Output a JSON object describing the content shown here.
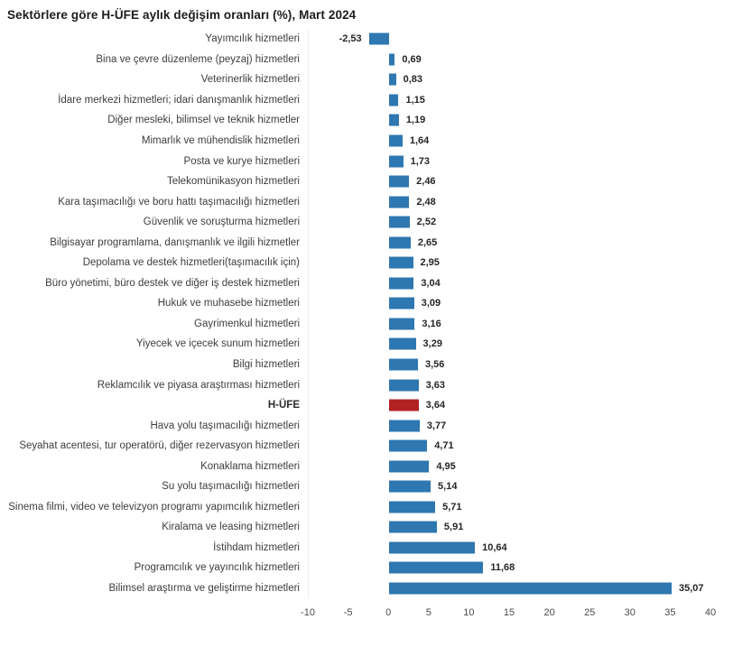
{
  "title": "Sektörlere göre H-ÜFE aylık değişim oranları (%), Mart 2024",
  "colors": {
    "bar": "#2e77b0",
    "highlight": "#b22222",
    "title_text": "#1c1c1c",
    "label_text": "#3d3d3d",
    "value_text": "#262626",
    "axis_text": "#4a4a4a"
  },
  "chart_data": {
    "type": "bar",
    "orientation": "horizontal",
    "title": "Sektörlere göre H-ÜFE aylık değişim oranları (%), Mart 2024",
    "xlabel": "",
    "ylabel": "",
    "xlim": [
      -10,
      40
    ],
    "x_ticks": [
      "-10",
      "-5",
      "0",
      "5",
      "10",
      "15",
      "20",
      "25",
      "30",
      "35",
      "40"
    ],
    "grid": false,
    "legend": false,
    "highlight_category": "H-ÜFE",
    "rows": [
      {
        "label": "Yayımcılık hizmetleri",
        "value": -2.53,
        "value_label": "-2,53",
        "highlight": false
      },
      {
        "label": "Bina ve çevre düzenleme (peyzaj) hizmetleri",
        "value": 0.69,
        "value_label": "0,69",
        "highlight": false
      },
      {
        "label": "Veterinerlik hizmetleri",
        "value": 0.83,
        "value_label": "0,83",
        "highlight": false
      },
      {
        "label": "İdare merkezi hizmetleri; idari danışmanlık hizmetleri",
        "value": 1.15,
        "value_label": "1,15",
        "highlight": false
      },
      {
        "label": "Diğer mesleki, bilimsel ve teknik hizmetler",
        "value": 1.19,
        "value_label": "1,19",
        "highlight": false
      },
      {
        "label": "Mimarlık ve mühendislik hizmetleri",
        "value": 1.64,
        "value_label": "1,64",
        "highlight": false
      },
      {
        "label": "Posta ve kurye hizmetleri",
        "value": 1.73,
        "value_label": "1,73",
        "highlight": false
      },
      {
        "label": "Telekomünikasyon hizmetleri",
        "value": 2.46,
        "value_label": "2,46",
        "highlight": false
      },
      {
        "label": "Kara taşımacılığı ve boru hattı taşımacılığı hizmetleri",
        "value": 2.48,
        "value_label": "2,48",
        "highlight": false
      },
      {
        "label": "Güvenlik ve soruşturma hizmetleri",
        "value": 2.52,
        "value_label": "2,52",
        "highlight": false
      },
      {
        "label": "Bilgisayar programlama, danışmanlık ve ilgili hizmetler",
        "value": 2.65,
        "value_label": "2,65",
        "highlight": false
      },
      {
        "label": "Depolama ve destek hizmetleri(taşımacılık için)",
        "value": 2.95,
        "value_label": "2,95",
        "highlight": false
      },
      {
        "label": "Büro yönetimi, büro destek ve diğer iş destek hizmetleri",
        "value": 3.04,
        "value_label": "3,04",
        "highlight": false
      },
      {
        "label": "Hukuk ve muhasebe hizmetleri",
        "value": 3.09,
        "value_label": "3,09",
        "highlight": false
      },
      {
        "label": "Gayrimenkul hizmetleri",
        "value": 3.16,
        "value_label": "3,16",
        "highlight": false
      },
      {
        "label": "Yiyecek ve içecek sunum hizmetleri",
        "value": 3.29,
        "value_label": "3,29",
        "highlight": false
      },
      {
        "label": "Bilgi hizmetleri",
        "value": 3.56,
        "value_label": "3,56",
        "highlight": false
      },
      {
        "label": "Reklamcılık ve piyasa araştırması hizmetleri",
        "value": 3.63,
        "value_label": "3,63",
        "highlight": false
      },
      {
        "label": "H-ÜFE",
        "value": 3.64,
        "value_label": "3,64",
        "highlight": true
      },
      {
        "label": "Hava yolu taşımacılığı hizmetleri",
        "value": 3.77,
        "value_label": "3,77",
        "highlight": false
      },
      {
        "label": "Seyahat acentesi, tur operatörü, diğer rezervasyon hizmetleri",
        "value": 4.71,
        "value_label": "4,71",
        "highlight": false
      },
      {
        "label": "Konaklama hizmetleri",
        "value": 4.95,
        "value_label": "4,95",
        "highlight": false
      },
      {
        "label": "Su yolu taşımacılığı hizmetleri",
        "value": 5.14,
        "value_label": "5,14",
        "highlight": false
      },
      {
        "label": "Sinema filmi, video ve televizyon programı yapımcılık hizmetleri",
        "value": 5.71,
        "value_label": "5,71",
        "highlight": false
      },
      {
        "label": "Kiralama ve leasing hizmetleri",
        "value": 5.91,
        "value_label": "5,91",
        "highlight": false
      },
      {
        "label": "İstihdam hizmetleri",
        "value": 10.64,
        "value_label": "10,64",
        "highlight": false
      },
      {
        "label": "Programcılık ve yayıncılık hizmetleri",
        "value": 11.68,
        "value_label": "11,68",
        "highlight": false
      },
      {
        "label": "Bilimsel araştırma ve geliştirme hizmetleri",
        "value": 35.07,
        "value_label": "35,07",
        "highlight": false
      }
    ]
  }
}
